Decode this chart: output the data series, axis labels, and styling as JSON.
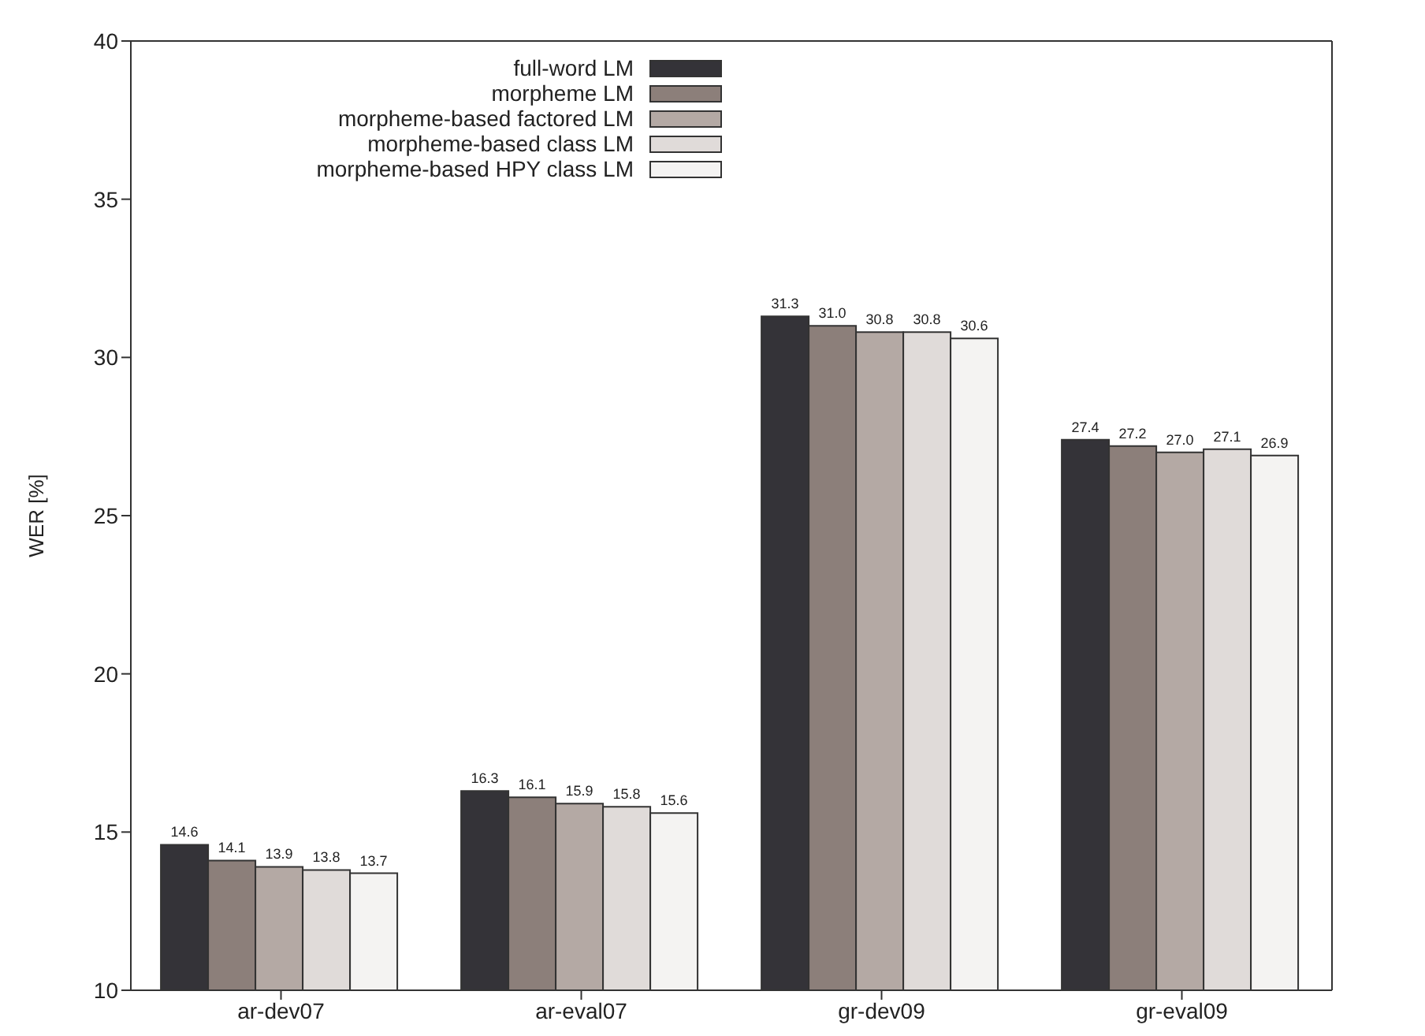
{
  "chart_data": {
    "type": "bar",
    "ylabel": "WER [%]",
    "categories": [
      "ar-dev07",
      "ar-eval07",
      "gr-dev09",
      "gr-eval09"
    ],
    "series": [
      {
        "name": "full-word LM",
        "color": "#343338",
        "values": [
          14.6,
          16.3,
          31.3,
          27.4
        ],
        "value_labels": [
          "14.6",
          "16.3",
          "31.3",
          "27.4"
        ]
      },
      {
        "name": "morpheme LM",
        "color": "#8c7f7a",
        "values": [
          14.1,
          16.1,
          31.0,
          27.2
        ],
        "value_labels": [
          "14.1",
          "16.1",
          "31.0",
          "27.2"
        ]
      },
      {
        "name": "morpheme-based factored LM",
        "color": "#b4a9a4",
        "values": [
          13.9,
          15.9,
          30.8,
          27.0
        ],
        "value_labels": [
          "13.9",
          "15.9",
          "30.8",
          "27.0"
        ]
      },
      {
        "name": "morpheme-based class LM",
        "color": "#e0dbd9",
        "values": [
          13.8,
          15.8,
          30.8,
          27.1
        ],
        "value_labels": [
          "13.8",
          "15.8",
          "30.8",
          "27.1"
        ]
      },
      {
        "name": "morpheme-based HPY class LM",
        "color": "#f4f3f2",
        "values": [
          13.7,
          15.6,
          30.6,
          26.9
        ],
        "value_labels": [
          "13.7",
          "15.6",
          "30.6",
          "26.9"
        ]
      }
    ],
    "ylim": [
      10,
      40
    ],
    "yticks": [
      10,
      15,
      20,
      25,
      30,
      35,
      40
    ],
    "legend": "top left",
    "grid": false
  }
}
